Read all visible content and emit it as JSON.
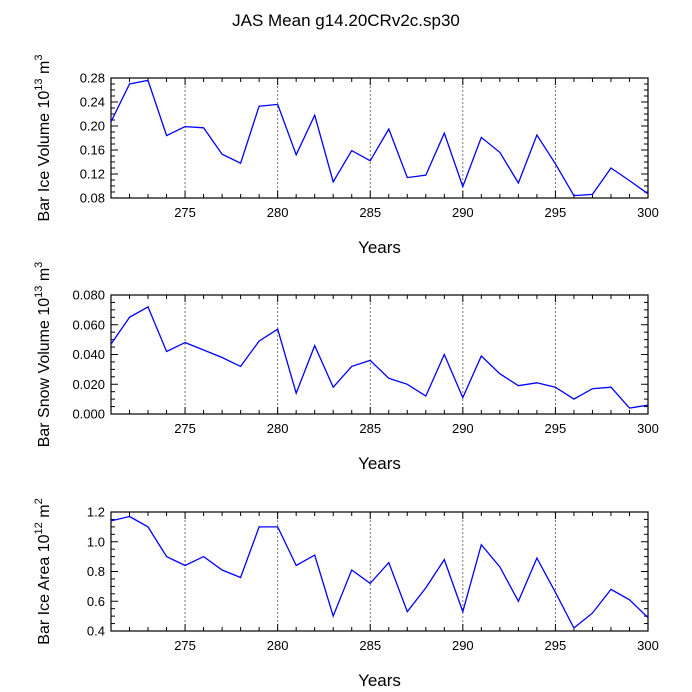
{
  "title": "JAS Mean g14.20CRv2c.sp30",
  "line_color": "#0000ff",
  "chart_data": [
    {
      "type": "line",
      "ylabel_base": "Bar Ice Volume 10",
      "ylabel_exp": "13",
      "ylabel_unit": "m",
      "ylabel_unit_exp": "3",
      "xlabel": "Years",
      "xlim": [
        271,
        300
      ],
      "ylim": [
        0.08,
        0.28
      ],
      "yticks": [
        0.08,
        0.12,
        0.16,
        0.2,
        0.24,
        0.28
      ],
      "ytick_labels": [
        "0.08",
        "0.12",
        "0.16",
        "0.20",
        "0.24",
        "0.28"
      ],
      "xticks": [
        275,
        280,
        285,
        290,
        295,
        300
      ],
      "xtick_labels": [
        "275",
        "280",
        "285",
        "290",
        "295",
        "300"
      ],
      "grid_x": [
        275,
        280,
        285,
        290,
        295
      ],
      "x": [
        271,
        272,
        273,
        274,
        275,
        276,
        277,
        278,
        279,
        280,
        281,
        282,
        283,
        284,
        285,
        286,
        287,
        288,
        289,
        290,
        291,
        292,
        293,
        294,
        295,
        296,
        297,
        298,
        299,
        300
      ],
      "values": [
        0.207,
        0.27,
        0.276,
        0.184,
        0.199,
        0.197,
        0.153,
        0.138,
        0.233,
        0.236,
        0.152,
        0.218,
        0.107,
        0.159,
        0.142,
        0.195,
        0.114,
        0.118,
        0.188,
        0.099,
        0.181,
        0.156,
        0.105,
        0.185,
        0.137,
        0.084,
        0.086,
        0.13,
        0.109,
        0.087
      ]
    },
    {
      "type": "line",
      "ylabel_base": "Bar Snow Volume 10",
      "ylabel_exp": "13",
      "ylabel_unit": "m",
      "ylabel_unit_exp": "3",
      "xlabel": "Years",
      "xlim": [
        271,
        300
      ],
      "ylim": [
        0.0,
        0.08
      ],
      "yticks": [
        0.0,
        0.02,
        0.04,
        0.06,
        0.08
      ],
      "ytick_labels": [
        "0.000",
        "0.020",
        "0.040",
        "0.060",
        "0.080"
      ],
      "xticks": [
        275,
        280,
        285,
        290,
        295,
        300
      ],
      "xtick_labels": [
        "275",
        "280",
        "285",
        "290",
        "295",
        "300"
      ],
      "grid_x": [
        275,
        280,
        285,
        290,
        295
      ],
      "x": [
        271,
        272,
        273,
        274,
        275,
        276,
        277,
        278,
        279,
        280,
        281,
        282,
        283,
        284,
        285,
        286,
        287,
        288,
        289,
        290,
        291,
        292,
        293,
        294,
        295,
        296,
        297,
        298,
        299,
        300
      ],
      "values": [
        0.047,
        0.065,
        0.072,
        0.042,
        0.048,
        0.043,
        0.038,
        0.032,
        0.049,
        0.057,
        0.014,
        0.046,
        0.018,
        0.032,
        0.036,
        0.024,
        0.02,
        0.012,
        0.04,
        0.011,
        0.039,
        0.027,
        0.019,
        0.021,
        0.018,
        0.01,
        0.017,
        0.018,
        0.004,
        0.006
      ]
    },
    {
      "type": "line",
      "ylabel_base": "Bar Ice Area 10",
      "ylabel_exp": "12",
      "ylabel_unit": "m",
      "ylabel_unit_exp": "2",
      "xlabel": "Years",
      "xlim": [
        271,
        300
      ],
      "ylim": [
        0.4,
        1.2
      ],
      "yticks": [
        0.4,
        0.6,
        0.8,
        1.0,
        1.2
      ],
      "ytick_labels": [
        "0.4",
        "0.6",
        "0.8",
        "1.0",
        "1.2"
      ],
      "xticks": [
        275,
        280,
        285,
        290,
        295,
        300
      ],
      "xtick_labels": [
        "275",
        "280",
        "285",
        "290",
        "295",
        "300"
      ],
      "grid_x": [
        275,
        280,
        285,
        290,
        295
      ],
      "x": [
        271,
        272,
        273,
        274,
        275,
        276,
        277,
        278,
        279,
        280,
        281,
        282,
        283,
        284,
        285,
        286,
        287,
        288,
        289,
        290,
        291,
        292,
        293,
        294,
        295,
        296,
        297,
        298,
        299,
        300
      ],
      "values": [
        1.14,
        1.17,
        1.1,
        0.9,
        0.84,
        0.9,
        0.81,
        0.76,
        1.1,
        1.1,
        0.84,
        0.91,
        0.5,
        0.81,
        0.72,
        0.86,
        0.53,
        0.69,
        0.88,
        0.53,
        0.98,
        0.83,
        0.6,
        0.89,
        0.66,
        0.42,
        0.52,
        0.68,
        0.61,
        0.49
      ]
    }
  ]
}
